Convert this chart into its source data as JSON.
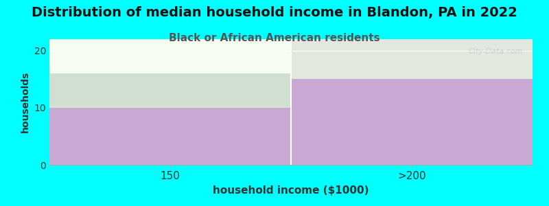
{
  "title": "Distribution of median household income in Blandon, PA in 2022",
  "subtitle": "Black or African American residents",
  "xlabel": "household income ($1000)",
  "ylabel": "households",
  "categories": [
    "150",
    ">200"
  ],
  "values": [
    10,
    15
  ],
  "bar_color": "#c9a8d4",
  "ylim": [
    0,
    22
  ],
  "yticks": [
    0,
    10,
    20
  ],
  "background_color": "#00FFFF",
  "plot_bg_color": "#f5fcf0",
  "title_fontsize": 14,
  "subtitle_fontsize": 11,
  "watermark": "City-Data.com",
  "subtitle_color": "#555555",
  "title_color": "#111111"
}
